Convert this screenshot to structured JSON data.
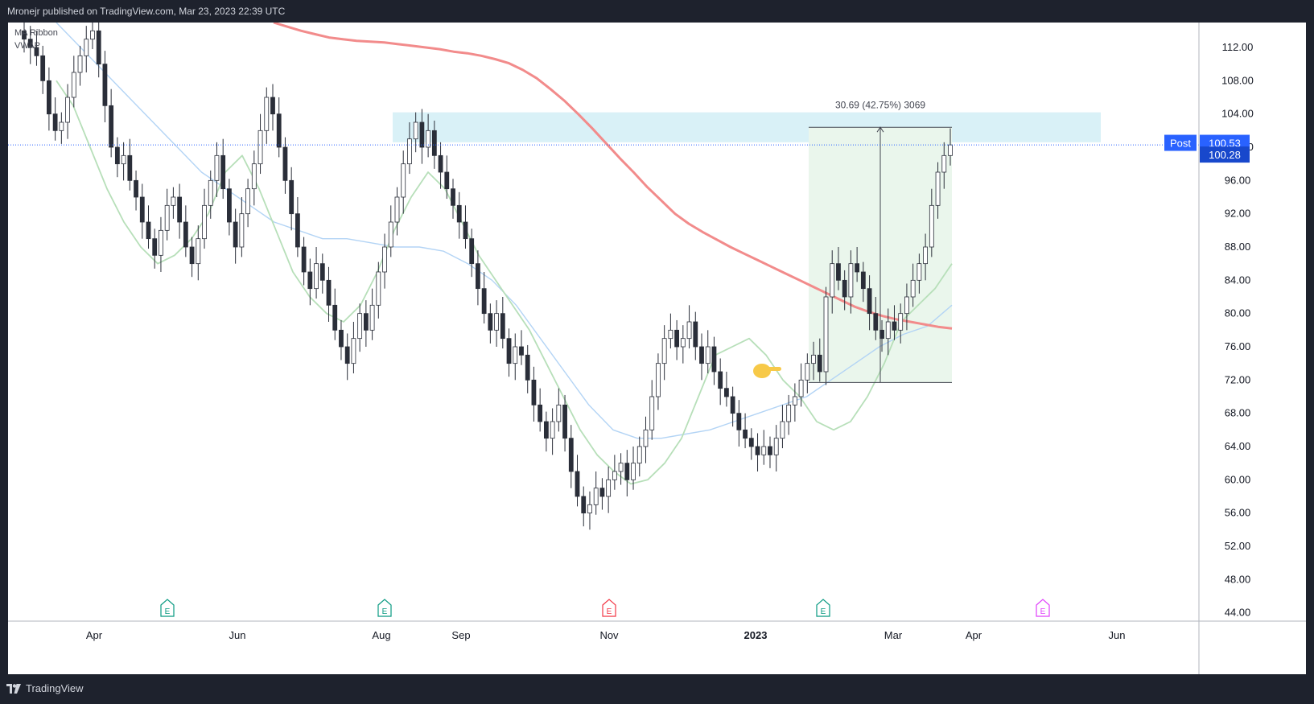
{
  "header": {
    "publish_line": "Mronejr published on TradingView.com, Mar 23, 2023 22:39 UTC"
  },
  "indicators": [
    "MA Ribbon",
    "VWAP"
  ],
  "footer": {
    "brand": "TradingView"
  },
  "colors": {
    "candle_up": "#ffffff",
    "candle_down": "#2a2e39",
    "ma200": "#f28b8b",
    "ma_fast": "#b7dfb9",
    "ma_slow": "#b3d4f5",
    "zone": "#d9f1f7",
    "range": "#eaf6ec",
    "post_badge": "#2962ff",
    "price_badge": "#2962ff",
    "earnings_green": "#089981",
    "earnings_red": "#f23645",
    "earnings_magenta": "#e040fb"
  },
  "chart_data": {
    "type": "candlestick",
    "x_labels": [
      "Apr",
      "Jun",
      "Aug",
      "Sep",
      "Nov",
      "2023",
      "Mar",
      "Apr",
      "Jun"
    ],
    "y_ticks": [
      112,
      108,
      104,
      100,
      96,
      92,
      88,
      84,
      80,
      76,
      72,
      68,
      64,
      60,
      56,
      52,
      48,
      44
    ],
    "y_tick_labels": [
      "112.00",
      "108.00",
      "104.00",
      "100.00",
      "96.00",
      "92.00",
      "88.00",
      "84.00",
      "80.00",
      "76.00",
      "72.00",
      "68.00",
      "64.00",
      "60.00",
      "56.00",
      "52.00",
      "48.00",
      "44.00"
    ],
    "ylim": [
      43,
      115
    ],
    "closes": [
      113,
      112,
      111,
      108,
      104,
      102,
      103,
      106,
      109,
      111,
      113,
      114,
      110,
      105,
      100,
      98,
      99,
      96,
      94,
      91,
      89,
      87,
      90,
      93,
      94,
      91,
      88,
      86,
      89,
      93,
      96,
      99,
      95,
      91,
      88,
      92,
      95,
      98,
      102,
      106,
      104,
      100,
      96,
      92,
      88,
      85,
      83,
      86,
      84,
      81,
      78,
      76,
      74,
      77,
      80,
      78,
      81,
      85,
      88,
      91,
      94,
      98,
      101,
      103,
      100,
      102,
      99,
      97,
      95,
      93,
      91,
      89,
      86,
      83,
      80,
      78,
      80,
      77,
      74,
      76,
      75,
      72,
      69,
      67,
      65,
      67,
      69,
      65,
      61,
      58,
      56,
      57,
      59,
      58,
      60,
      61,
      62,
      60,
      62,
      64,
      66,
      70,
      74,
      77,
      78,
      76,
      77,
      79,
      76,
      74,
      76,
      73,
      71,
      70,
      68,
      66,
      65,
      64,
      63,
      64,
      63,
      65,
      67,
      69,
      70,
      72,
      74,
      75,
      73,
      82,
      86,
      84,
      82,
      86,
      85,
      83,
      80,
      78,
      77,
      79,
      78,
      80,
      82,
      84,
      86,
      88,
      93,
      97,
      99,
      100.28
    ],
    "ma200": [
      115,
      114.5,
      114,
      113.6,
      113.2,
      113,
      112.8,
      112.7,
      112.6,
      112.4,
      112.2,
      112,
      111.8,
      111.5,
      111.3,
      111,
      110.6,
      110.1,
      109.3,
      108.3,
      107,
      105.6,
      104,
      102.3,
      100.5,
      98.7,
      97,
      95.2,
      93.6,
      92,
      90.8,
      89.8,
      88.9,
      88,
      87.2,
      86.4,
      85.6,
      84.8,
      84,
      83.2,
      82.4,
      81.6,
      80.8,
      80.2,
      79.7,
      79.3,
      79,
      78.7,
      78.4,
      78.2
    ],
    "ma_fast": [
      108,
      105,
      100,
      95,
      91,
      88,
      86,
      87,
      89,
      92,
      97,
      99,
      95,
      90,
      85,
      82,
      80,
      79,
      81,
      85,
      90,
      94,
      97,
      95,
      91,
      87,
      84,
      81,
      78,
      74,
      70,
      66,
      63,
      61,
      59.5,
      60,
      62,
      65,
      70,
      75,
      76,
      77,
      75,
      72,
      70,
      67,
      66,
      67,
      70,
      74,
      79,
      81,
      83,
      86
    ],
    "ma_slow": [
      115,
      112,
      109,
      106,
      103,
      100,
      97,
      95,
      93,
      91,
      90,
      89,
      89,
      88.5,
      88,
      88,
      87.5,
      86,
      84,
      81,
      77,
      73,
      69,
      66,
      65,
      65,
      65.5,
      66,
      67,
      68,
      69,
      70,
      72,
      74,
      76,
      77.5,
      78.5,
      81
    ],
    "measure_label": "30.69 (42.75%) 3069",
    "post_label": "Post",
    "post_price": "100.53",
    "last_price": "100.28",
    "earnings_markers": [
      "E",
      "E",
      "E",
      "E",
      "E"
    ]
  }
}
